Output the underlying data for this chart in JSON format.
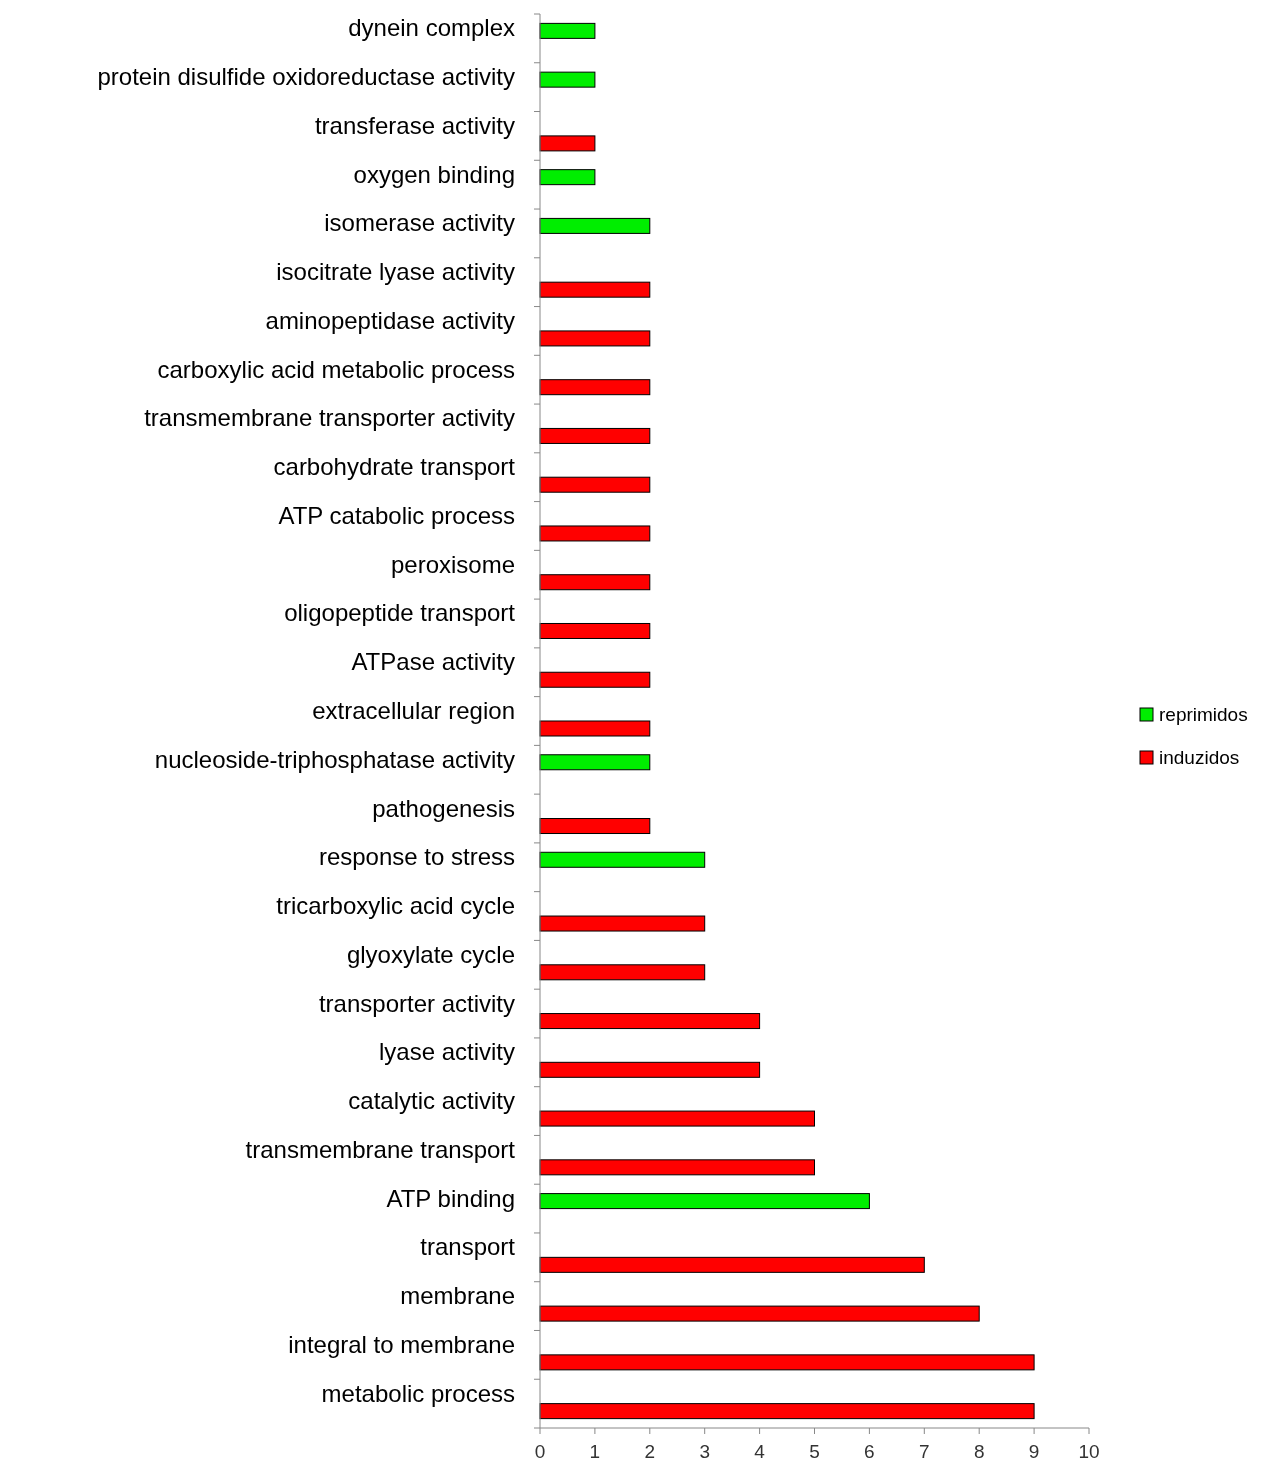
{
  "chart_data": {
    "type": "bar",
    "orientation": "horizontal",
    "categories": [
      "dynein complex",
      "protein disulfide oxidoreductase activity",
      "transferase activity",
      "oxygen binding",
      "isomerase activity",
      "isocitrate lyase activity",
      "aminopeptidase activity",
      "carboxylic acid metabolic process",
      "transmembrane transporter activity",
      "carbohydrate transport",
      "ATP catabolic process",
      "peroxisome",
      "oligopeptide transport",
      "ATPase activity",
      "extracellular region",
      "nucleoside-triphosphatase activity",
      "pathogenesis",
      "response to stress",
      "tricarboxylic acid cycle",
      "glyoxylate cycle",
      "transporter activity",
      "lyase activity",
      "catalytic activity",
      "transmembrane transport",
      "ATP binding",
      "transport",
      "membrane",
      "integral to membrane",
      "metabolic process"
    ],
    "series": [
      {
        "name": "reprimidos",
        "color": "#00ee00",
        "values": [
          1,
          1,
          null,
          1,
          2,
          null,
          null,
          null,
          null,
          null,
          null,
          null,
          null,
          null,
          null,
          2,
          null,
          3,
          null,
          null,
          null,
          null,
          null,
          null,
          6,
          null,
          null,
          null,
          null
        ]
      },
      {
        "name": "induzidos",
        "color": "#ff0000",
        "values": [
          null,
          null,
          1,
          null,
          null,
          2,
          2,
          2,
          2,
          2,
          2,
          2,
          2,
          2,
          2,
          null,
          2,
          null,
          3,
          3,
          4,
          4,
          5,
          5,
          null,
          7,
          8,
          9,
          9
        ]
      }
    ],
    "xlim": [
      0,
      10
    ],
    "xticks": [
      0,
      1,
      2,
      3,
      4,
      5,
      6,
      7,
      8,
      9,
      10
    ],
    "grid": false,
    "legend": "right"
  }
}
